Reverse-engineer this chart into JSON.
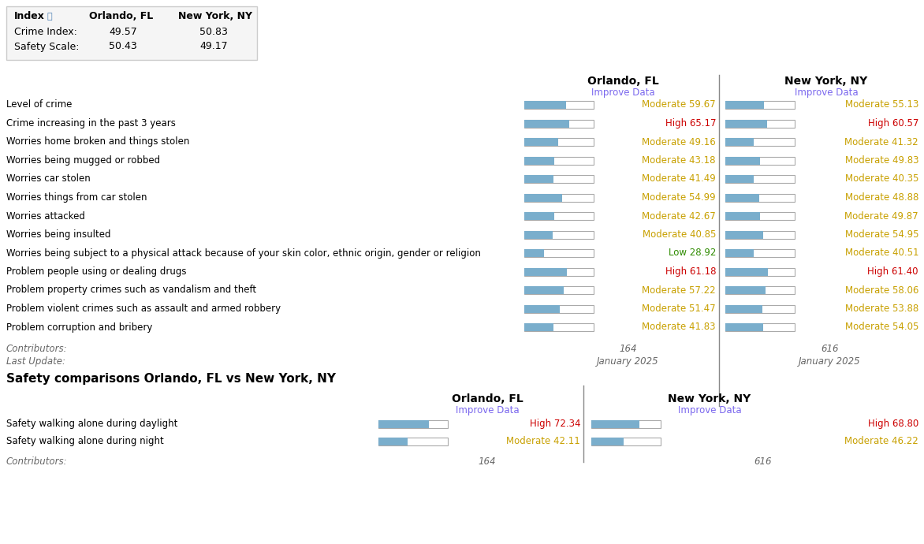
{
  "index_table": {
    "rows": [
      [
        "Crime Index:",
        "49.57",
        "50.83"
      ],
      [
        "Safety Scale:",
        "50.43",
        "49.17"
      ]
    ]
  },
  "crime_rows": [
    {
      "label": "Level of crime",
      "orl_val": 59.67,
      "orl_level": "Moderate",
      "ny_val": 55.13,
      "ny_level": "Moderate"
    },
    {
      "label": "Crime increasing in the past 3 years",
      "orl_val": 65.17,
      "orl_level": "High",
      "ny_val": 60.57,
      "ny_level": "High"
    },
    {
      "label": "Worries home broken and things stolen",
      "orl_val": 49.16,
      "orl_level": "Moderate",
      "ny_val": 41.32,
      "ny_level": "Moderate"
    },
    {
      "label": "Worries being mugged or robbed",
      "orl_val": 43.18,
      "orl_level": "Moderate",
      "ny_val": 49.83,
      "ny_level": "Moderate"
    },
    {
      "label": "Worries car stolen",
      "orl_val": 41.49,
      "orl_level": "Moderate",
      "ny_val": 40.35,
      "ny_level": "Moderate"
    },
    {
      "label": "Worries things from car stolen",
      "orl_val": 54.99,
      "orl_level": "Moderate",
      "ny_val": 48.88,
      "ny_level": "Moderate"
    },
    {
      "label": "Worries attacked",
      "orl_val": 42.67,
      "orl_level": "Moderate",
      "ny_val": 49.87,
      "ny_level": "Moderate"
    },
    {
      "label": "Worries being insulted",
      "orl_val": 40.85,
      "orl_level": "Moderate",
      "ny_val": 54.95,
      "ny_level": "Moderate"
    },
    {
      "label": "Worries being subject to a physical attack because of your skin color, ethnic origin, gender or religion",
      "orl_val": 28.92,
      "orl_level": "Low",
      "ny_val": 40.51,
      "ny_level": "Moderate"
    },
    {
      "label": "Problem people using or dealing drugs",
      "orl_val": 61.18,
      "orl_level": "High",
      "ny_val": 61.4,
      "ny_level": "High"
    },
    {
      "label": "Problem property crimes such as vandalism and theft",
      "orl_val": 57.22,
      "orl_level": "Moderate",
      "ny_val": 58.06,
      "ny_level": "Moderate"
    },
    {
      "label": "Problem violent crimes such as assault and armed robbery",
      "orl_val": 51.47,
      "orl_level": "Moderate",
      "ny_val": 53.88,
      "ny_level": "Moderate"
    },
    {
      "label": "Problem corruption and bribery",
      "orl_val": 41.83,
      "orl_level": "Moderate",
      "ny_val": 54.05,
      "ny_level": "Moderate"
    }
  ],
  "safety_rows": [
    {
      "label": "Safety walking alone during daylight",
      "orl_val": 72.34,
      "orl_level": "High",
      "ny_val": 68.8,
      "ny_level": "High"
    },
    {
      "label": "Safety walking alone during night",
      "orl_val": 42.11,
      "orl_level": "Moderate",
      "ny_val": 46.22,
      "ny_level": "Moderate"
    }
  ],
  "contributors": {
    "orlando": "164",
    "newyork": "616"
  },
  "last_update": "January 2025",
  "colors": {
    "bar_fill": "#7aaecc",
    "bar_border": "#aaaaaa",
    "moderate": "#c8a000",
    "high": "#cc0000",
    "low": "#2e8b00",
    "improve_data": "#7b68ee",
    "bg_table": "#f5f5f5",
    "table_border": "#cccccc",
    "divider": "#888888"
  },
  "city1": "Orlando, FL",
  "city2": "New York, NY"
}
